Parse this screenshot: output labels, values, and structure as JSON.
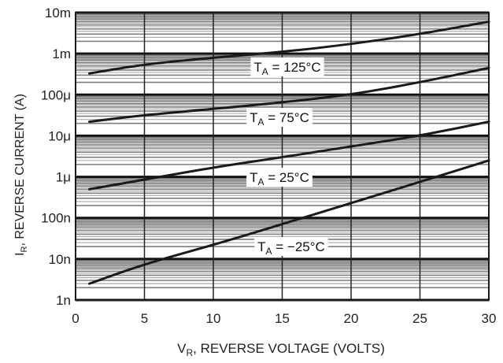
{
  "chart_data": {
    "type": "line",
    "title": "",
    "xlabel": {
      "prefix": "V",
      "subscript": "R",
      "text": ", REVERSE VOLTAGE (VOLTS)"
    },
    "ylabel": {
      "prefix": "I",
      "subscript": "R",
      "text": ", REVERSE CURRENT (A)"
    },
    "x_scale": "linear",
    "y_scale": "log",
    "xlim": [
      0,
      30
    ],
    "ylim": [
      1e-09,
      0.01
    ],
    "x_ticks": [
      0,
      5,
      10,
      15,
      20,
      25,
      30
    ],
    "x_tick_labels": [
      "0",
      "5",
      "10",
      "15",
      "20",
      "25",
      "30"
    ],
    "y_ticks": [
      1e-09,
      1e-08,
      1e-07,
      1e-06,
      1e-05,
      0.0001,
      0.001,
      0.01
    ],
    "y_tick_labels": [
      "1n",
      "10n",
      "100n",
      "1μ",
      "10μ",
      "100μ",
      "1m",
      "10m"
    ],
    "grid": true,
    "series": [
      {
        "name": {
          "prefix": "T",
          "subscript": "A",
          "text": " = 125°C"
        },
        "x": [
          1,
          5,
          10,
          15,
          20,
          25,
          30
        ],
        "y": [
          0.00033,
          0.00055,
          0.0008,
          0.0011,
          0.0017,
          0.003,
          0.006
        ]
      },
      {
        "name": {
          "prefix": "T",
          "subscript": "A",
          "text": " = 75°C"
        },
        "x": [
          1,
          5,
          10,
          15,
          20,
          25,
          30
        ],
        "y": [
          2.2e-05,
          3.2e-05,
          4.5e-05,
          6.5e-05,
          0.0001,
          0.0002,
          0.00045
        ]
      },
      {
        "name": {
          "prefix": "T",
          "subscript": "A",
          "text": " = 25°C"
        },
        "x": [
          1,
          5,
          10,
          15,
          20,
          25,
          30
        ],
        "y": [
          5e-07,
          8.5e-07,
          1.7e-06,
          3e-06,
          5.5e-06,
          1e-05,
          2.2e-05
        ]
      },
      {
        "name": {
          "prefix": "T",
          "subscript": "A",
          "text": " = −25°C"
        },
        "x": [
          1,
          5,
          10,
          15,
          20,
          25,
          30
        ],
        "y": [
          2.5e-09,
          7.5e-09,
          2.2e-08,
          7e-08,
          2.3e-07,
          7.5e-07,
          2.5e-06
        ]
      }
    ]
  }
}
